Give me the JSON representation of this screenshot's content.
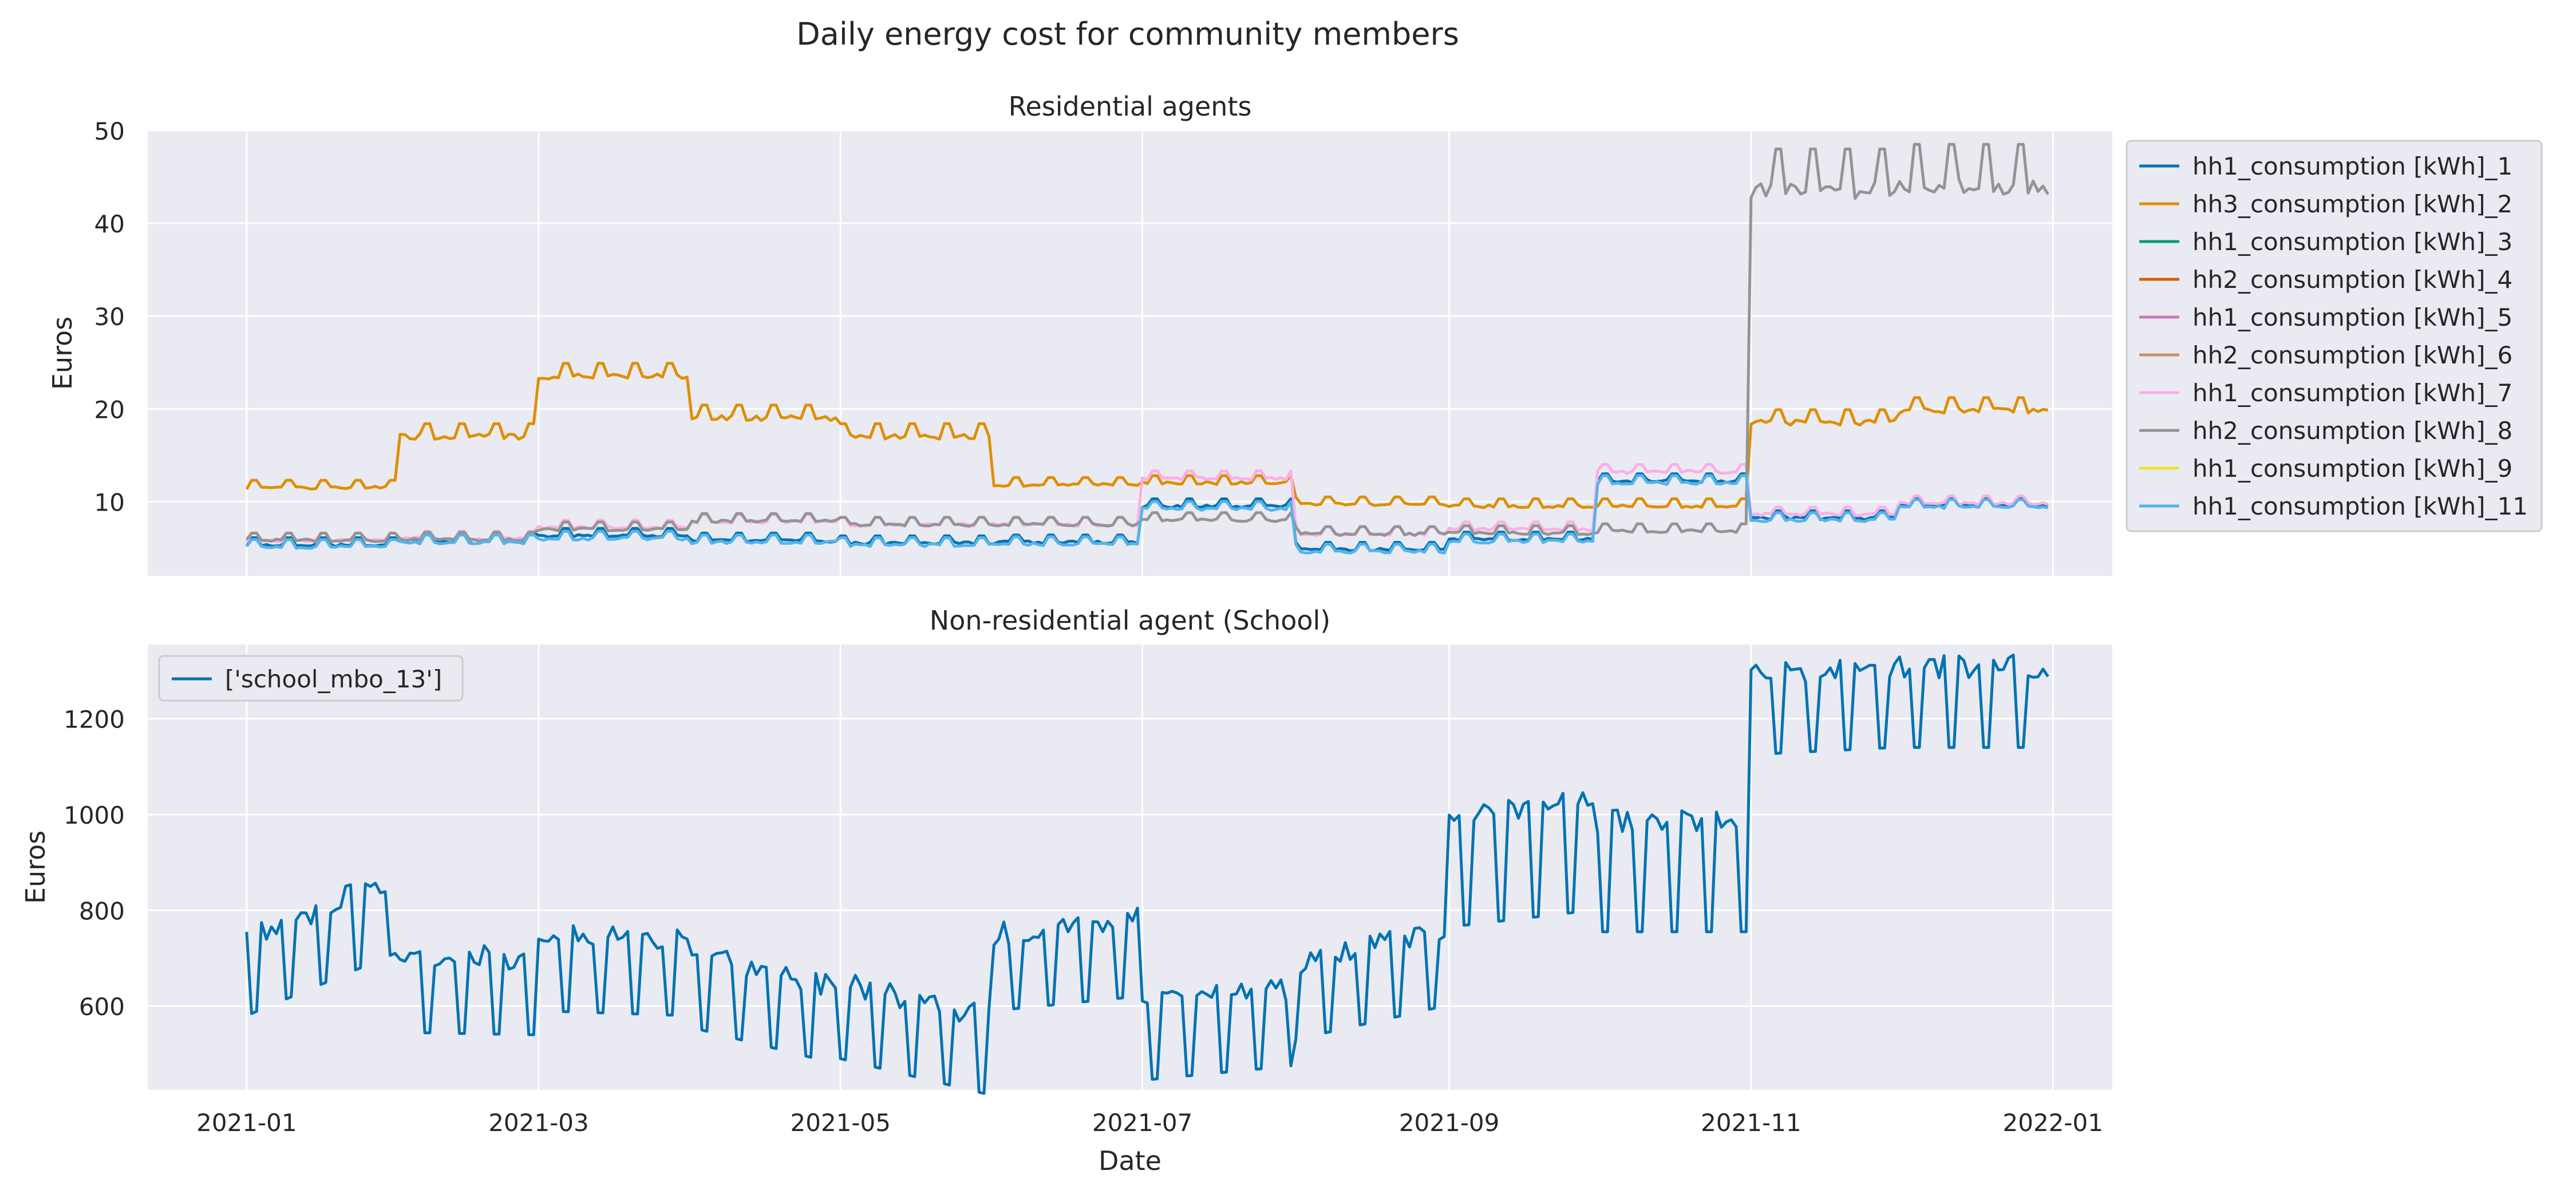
{
  "figure": {
    "title": "Daily energy cost for community members"
  },
  "chart_data": [
    {
      "type": "line",
      "title": "Residential agents",
      "xlabel": "",
      "ylabel": "Euros",
      "x_range": [
        "2021-01-01",
        "2021-12-31"
      ],
      "ylim": [
        2.0,
        50
      ],
      "y_ticks": [
        10,
        20,
        30,
        40,
        50
      ],
      "grid": true,
      "legend": "outside-right",
      "series": [
        {
          "name": "hh1_consumption [kWh]_1",
          "color": "#0173b2",
          "segments": [
            [
              "2021-01-01",
              5.3
            ],
            [
              "2021-01-31",
              5.3
            ],
            [
              "2021-02-01",
              5.8
            ],
            [
              "2021-02-28",
              5.8
            ],
            [
              "2021-03-01",
              6.3
            ],
            [
              "2021-03-31",
              6.3
            ],
            [
              "2021-04-01",
              5.8
            ],
            [
              "2021-04-30",
              5.8
            ],
            [
              "2021-05-01",
              5.5
            ],
            [
              "2021-05-31",
              5.5
            ],
            [
              "2021-06-01",
              5.6
            ],
            [
              "2021-06-30",
              5.6
            ],
            [
              "2021-07-01",
              9.5
            ],
            [
              "2021-07-31",
              9.5
            ],
            [
              "2021-08-01",
              4.8
            ],
            [
              "2021-08-31",
              4.8
            ],
            [
              "2021-09-01",
              5.9
            ],
            [
              "2021-09-30",
              5.9
            ],
            [
              "2021-10-01",
              12.2
            ],
            [
              "2021-10-31",
              12.2
            ],
            [
              "2021-11-01",
              8.2
            ],
            [
              "2021-11-30",
              8.2
            ],
            [
              "2021-12-01",
              9.6
            ],
            [
              "2021-12-31",
              9.6
            ]
          ]
        },
        {
          "name": "hh3_consumption [kWh]_2",
          "color": "#de8f05",
          "segments": [
            [
              "2021-01-01",
              11.5
            ],
            [
              "2021-01-31",
              11.5
            ],
            [
              "2021-02-01",
              17.0
            ],
            [
              "2021-02-28",
              17.0
            ],
            [
              "2021-03-01",
              23.5
            ],
            [
              "2021-03-31",
              23.5
            ],
            [
              "2021-04-01",
              19.0
            ],
            [
              "2021-04-30",
              19.0
            ],
            [
              "2021-05-01",
              17.0
            ],
            [
              "2021-05-31",
              17.0
            ],
            [
              "2021-06-01",
              11.8
            ],
            [
              "2021-06-30",
              11.8
            ],
            [
              "2021-07-01",
              12.0
            ],
            [
              "2021-07-31",
              12.0
            ],
            [
              "2021-08-01",
              9.7
            ],
            [
              "2021-08-31",
              9.7
            ],
            [
              "2021-09-01",
              9.5
            ],
            [
              "2021-09-30",
              9.5
            ],
            [
              "2021-10-01",
              9.5
            ],
            [
              "2021-10-31",
              9.5
            ],
            [
              "2021-11-01",
              18.5
            ],
            [
              "2021-11-30",
              18.5
            ],
            [
              "2021-12-01",
              19.8
            ],
            [
              "2021-12-31",
              19.8
            ]
          ]
        },
        {
          "name": "hh1_consumption [kWh]_3",
          "color": "#029e73",
          "segments": []
        },
        {
          "name": "hh2_consumption [kWh]_4",
          "color": "#d55e00",
          "segments": []
        },
        {
          "name": "hh1_consumption [kWh]_5",
          "color": "#cc78bc",
          "segments": []
        },
        {
          "name": "hh2_consumption [kWh]_6",
          "color": "#ca9161",
          "segments": []
        },
        {
          "name": "hh1_consumption [kWh]_7",
          "color": "#fbafe4",
          "segments": [
            [
              "2021-01-01",
              5.8
            ],
            [
              "2021-01-31",
              5.8
            ],
            [
              "2021-02-01",
              6.0
            ],
            [
              "2021-02-28",
              6.0
            ],
            [
              "2021-03-01",
              7.2
            ],
            [
              "2021-03-31",
              7.2
            ],
            [
              "2021-04-01",
              7.8
            ],
            [
              "2021-04-30",
              7.8
            ],
            [
              "2021-05-01",
              7.5
            ],
            [
              "2021-05-31",
              7.5
            ],
            [
              "2021-06-01",
              7.5
            ],
            [
              "2021-06-30",
              7.5
            ],
            [
              "2021-07-01",
              12.5
            ],
            [
              "2021-07-31",
              12.5
            ],
            [
              "2021-08-01",
              6.5
            ],
            [
              "2021-08-31",
              6.5
            ],
            [
              "2021-09-01",
              7.0
            ],
            [
              "2021-09-30",
              7.0
            ],
            [
              "2021-10-01",
              13.2
            ],
            [
              "2021-10-31",
              13.2
            ],
            [
              "2021-11-01",
              8.6
            ],
            [
              "2021-11-30",
              8.6
            ],
            [
              "2021-12-01",
              9.8
            ],
            [
              "2021-12-31",
              9.8
            ]
          ]
        },
        {
          "name": "hh2_consumption [kWh]_8",
          "color": "#949494",
          "segments": [
            [
              "2021-01-01",
              5.8
            ],
            [
              "2021-01-31",
              5.8
            ],
            [
              "2021-02-01",
              5.9
            ],
            [
              "2021-02-28",
              5.9
            ],
            [
              "2021-03-01",
              7.0
            ],
            [
              "2021-03-31",
              7.0
            ],
            [
              "2021-04-01",
              7.9
            ],
            [
              "2021-04-30",
              7.9
            ],
            [
              "2021-05-01",
              7.5
            ],
            [
              "2021-05-31",
              7.5
            ],
            [
              "2021-06-01",
              7.5
            ],
            [
              "2021-06-30",
              7.5
            ],
            [
              "2021-07-01",
              8.0
            ],
            [
              "2021-07-31",
              8.0
            ],
            [
              "2021-08-01",
              6.5
            ],
            [
              "2021-08-31",
              6.5
            ],
            [
              "2021-09-01",
              6.6
            ],
            [
              "2021-09-30",
              6.6
            ],
            [
              "2021-10-01",
              6.8
            ],
            [
              "2021-10-31",
              6.8
            ],
            [
              "2021-11-01",
              43.5
            ],
            [
              "2021-11-30",
              43.5
            ],
            [
              "2021-12-01",
              44.0
            ],
            [
              "2021-12-31",
              44.0
            ]
          ]
        },
        {
          "name": "hh1_consumption [kWh]_9",
          "color": "#ece133",
          "segments": []
        },
        {
          "name": "hh1_consumption [kWh]_11",
          "color": "#56b4e9",
          "segments": [
            [
              "2021-01-01",
              5.1
            ],
            [
              "2021-01-31",
              5.1
            ],
            [
              "2021-02-01",
              5.6
            ],
            [
              "2021-02-28",
              5.6
            ],
            [
              "2021-03-01",
              6.0
            ],
            [
              "2021-03-31",
              6.0
            ],
            [
              "2021-04-01",
              5.6
            ],
            [
              "2021-04-30",
              5.6
            ],
            [
              "2021-05-01",
              5.3
            ],
            [
              "2021-05-31",
              5.3
            ],
            [
              "2021-06-01",
              5.4
            ],
            [
              "2021-06-30",
              5.4
            ],
            [
              "2021-07-01",
              9.2
            ],
            [
              "2021-07-31",
              9.2
            ],
            [
              "2021-08-01",
              4.6
            ],
            [
              "2021-08-31",
              4.6
            ],
            [
              "2021-09-01",
              5.7
            ],
            [
              "2021-09-30",
              5.7
            ],
            [
              "2021-10-01",
              12.0
            ],
            [
              "2021-10-31",
              12.0
            ],
            [
              "2021-11-01",
              8.0
            ],
            [
              "2021-11-30",
              8.0
            ],
            [
              "2021-12-01",
              9.4
            ],
            [
              "2021-12-31",
              9.4
            ]
          ]
        }
      ]
    },
    {
      "type": "line",
      "title": "Non-residential agent (School)",
      "xlabel": "Date",
      "ylabel": "Euros",
      "x_range": [
        "2021-01-01",
        "2021-12-31"
      ],
      "x_ticks": [
        "2021-01",
        "2021-03",
        "2021-05",
        "2021-07",
        "2021-09",
        "2021-11",
        "2022-01"
      ],
      "ylim": [
        425,
        1355
      ],
      "y_ticks": [
        600,
        800,
        1000,
        1200
      ],
      "grid": true,
      "legend": "upper-left",
      "series": [
        {
          "name": "['school_mbo_13']",
          "color": "#0173b2",
          "segments": [
            [
              "2021-01-01",
              740
            ],
            [
              "2021-01-31",
              870
            ],
            [
              "2021-02-01",
              705
            ],
            [
              "2021-02-28",
              700
            ],
            [
              "2021-03-01",
              750
            ],
            [
              "2021-03-31",
              740
            ],
            [
              "2021-04-01",
              715
            ],
            [
              "2021-04-30",
              640
            ],
            [
              "2021-05-01",
              650
            ],
            [
              "2021-05-31",
              575
            ],
            [
              "2021-06-01",
              750
            ],
            [
              "2021-06-30",
              780
            ],
            [
              "2021-07-01",
              605
            ],
            [
              "2021-07-31",
              635
            ],
            [
              "2021-08-01",
              690
            ],
            [
              "2021-08-31",
              760
            ],
            [
              "2021-09-01",
              995
            ],
            [
              "2021-09-30",
              1030
            ],
            [
              "2021-10-01",
              985
            ],
            [
              "2021-10-31",
              985
            ],
            [
              "2021-11-01",
              1295
            ],
            [
              "2021-11-30",
              1310
            ],
            [
              "2021-12-01",
              1310
            ],
            [
              "2021-12-31",
              1310
            ]
          ]
        }
      ]
    }
  ]
}
